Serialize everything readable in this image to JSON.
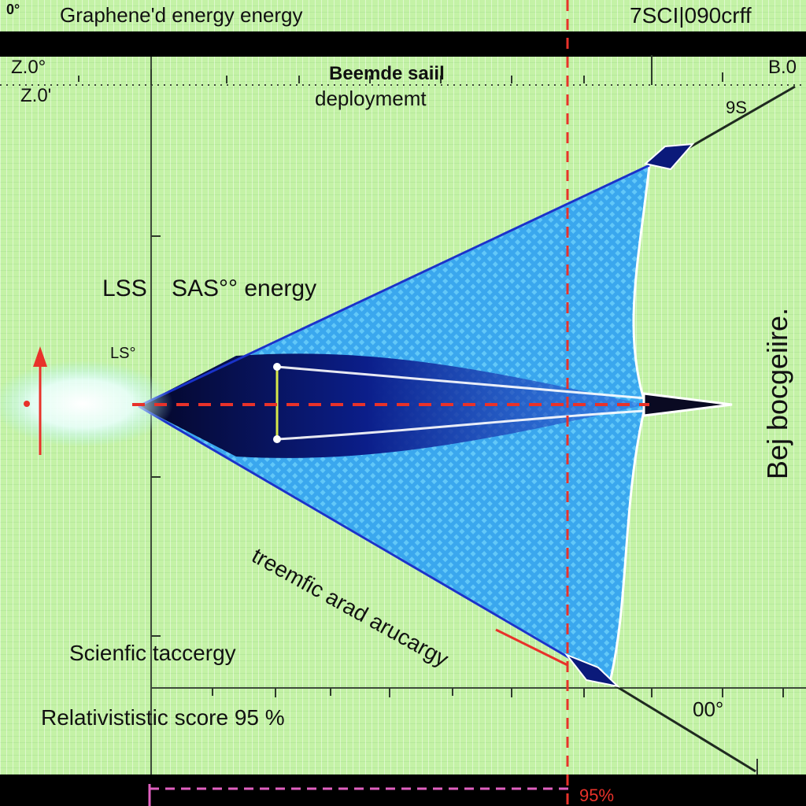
{
  "header": {
    "corner_label": "0°",
    "title": "Graphene'd energy energy",
    "code": "7SCI|090crff"
  },
  "axis": {
    "top_left_a": "Z.0°",
    "top_left_b": "Z.0'",
    "top_right": "B.0",
    "upper_right_label": "9S",
    "lower_right_label": "00°"
  },
  "labels": {
    "deploy_line1": "Beemde saiil",
    "deploy_line2": "deploymemt",
    "lss": "LSS",
    "sas": "SAS°° energy",
    "ls_small": "LS°",
    "side": "Bej bocgeiire.",
    "diagonal": "treemfic arad arucargy",
    "scientific": "Scienfic taccergy",
    "score": "Relativististic score 95 %",
    "bottom_pct": "95%"
  },
  "colors": {
    "background": "#c4f2a6",
    "sail_edge": "#1a33c9",
    "sail_fill": "#3aa7ee",
    "dash_red": "#e8322a",
    "dash_pink": "#e060c0"
  }
}
